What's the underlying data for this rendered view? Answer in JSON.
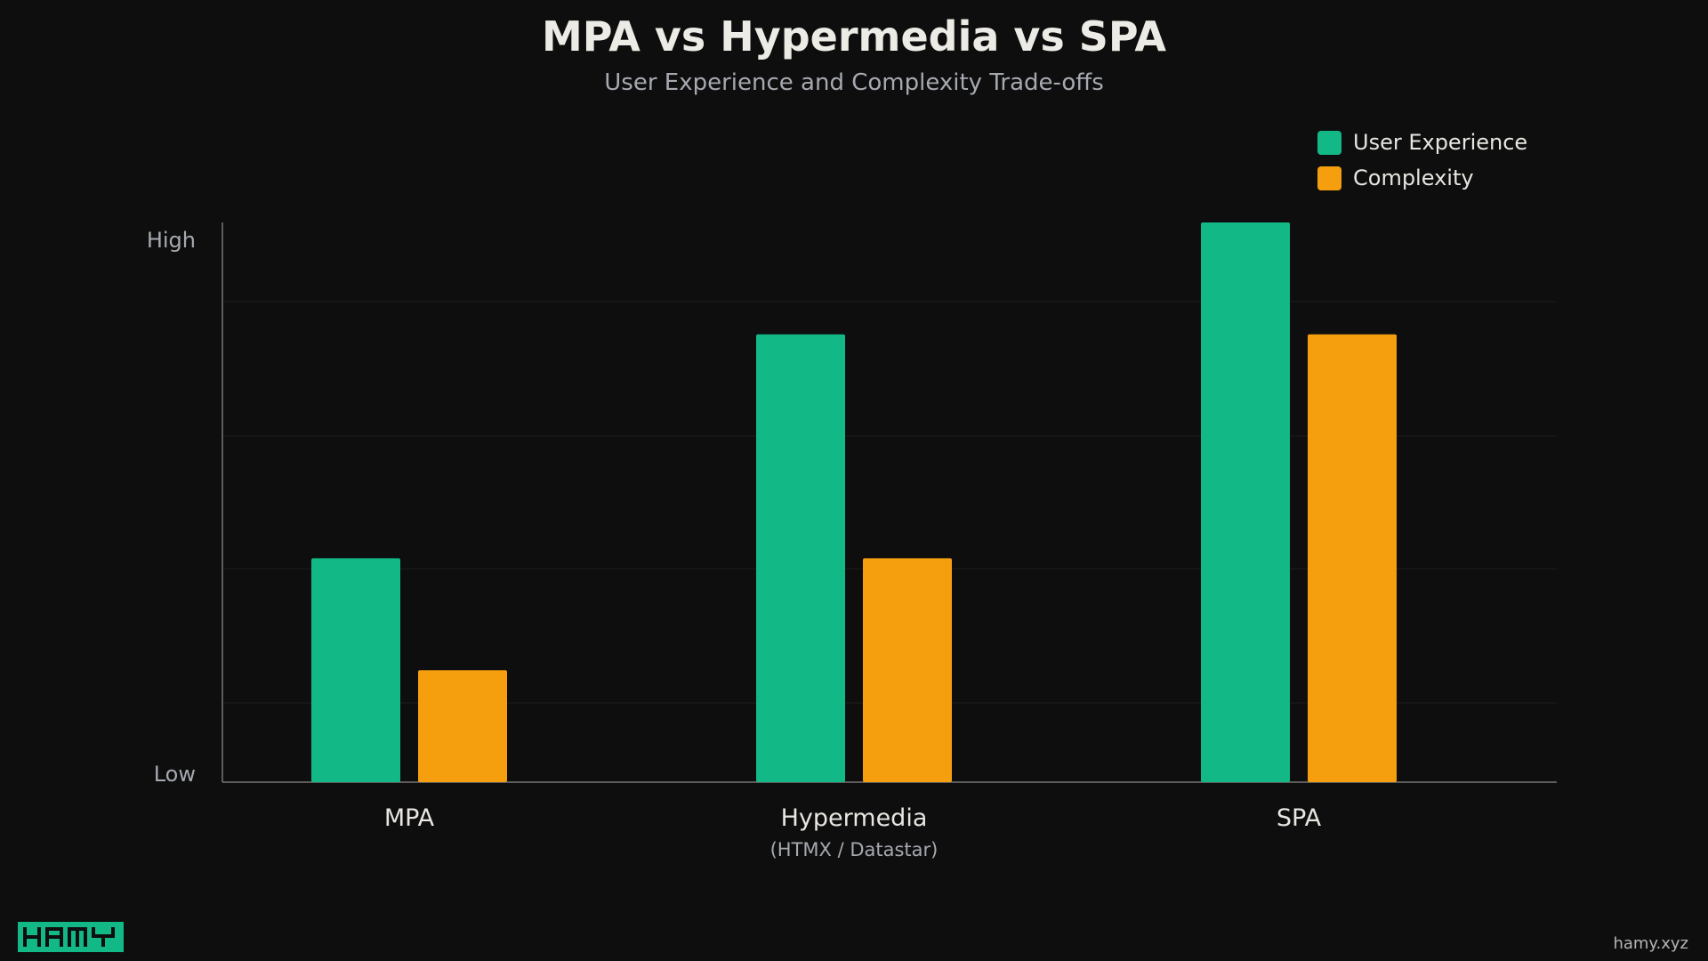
{
  "chart_data": {
    "type": "bar",
    "title": "MPA vs Hypermedia vs SPA",
    "subtitle": "User Experience and Complexity Trade-offs",
    "categories": [
      "MPA",
      "Hypermedia",
      "SPA"
    ],
    "category_sublabels": [
      "",
      "(HTMX / Datastar)",
      ""
    ],
    "series": [
      {
        "name": "User Experience",
        "color": "#12b886",
        "values": [
          2,
          4,
          5
        ]
      },
      {
        "name": "Complexity",
        "color": "#f59f0f",
        "values": [
          1,
          2,
          4
        ]
      }
    ],
    "ylim": [
      0,
      5
    ],
    "y_tick_labels": {
      "low": "Low",
      "high": "High"
    },
    "grid": true,
    "legend_position": "top-right"
  },
  "branding": {
    "logo_text": "HAMY",
    "site": "hamy.xyz"
  }
}
